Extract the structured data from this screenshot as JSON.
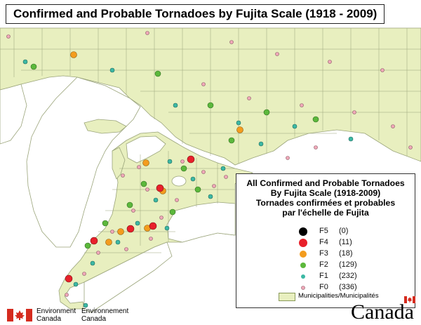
{
  "title": "Confirmed and Probable Tornadoes by Fujita Scale (1918 - 2009)",
  "legend": {
    "heading": [
      "All Confirmed and Probable Tornadoes",
      "By Fujita Scale (1918-2009)",
      "Tornades confirmées et probables",
      "par l'échelle de Fujita"
    ],
    "items": [
      {
        "label": "F5",
        "count": "(0)",
        "color": "#000000"
      },
      {
        "label": "F4",
        "count": "(11)",
        "color": "#e8202a"
      },
      {
        "label": "F3",
        "count": "(18)",
        "color": "#f39c1e"
      },
      {
        "label": "F2",
        "count": "(129)",
        "color": "#5cb83c"
      },
      {
        "label": "F1",
        "count": "(232)",
        "color": "#3cb8a4"
      },
      {
        "label": "F0",
        "count": "(336)",
        "color": "#f0a8b8"
      }
    ],
    "municipalities_label": "Municipalities/Municipalités"
  },
  "colors": {
    "land": "#e8efbf",
    "water": "#ffffff",
    "boundary": "#9aa47a"
  },
  "footer": {
    "department_en": [
      "Environment",
      "Canada"
    ],
    "department_fr": [
      "Environnement",
      "Canada"
    ],
    "wordmark": "Canada"
  }
}
